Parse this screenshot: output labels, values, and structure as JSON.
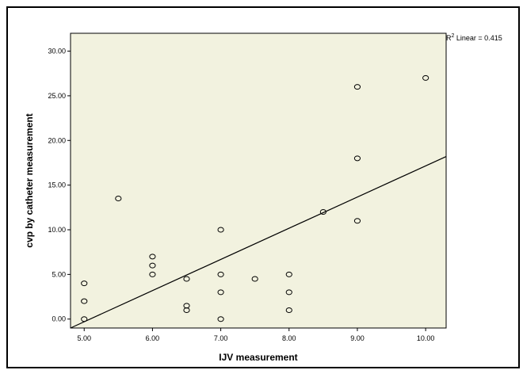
{
  "chart_data": {
    "type": "scatter",
    "title": "",
    "xlabel": "IJV measurement",
    "ylabel": "cvp by catheter measurement",
    "xlim": [
      4.8,
      10.3
    ],
    "ylim": [
      -1.0,
      32.0
    ],
    "xticks": [
      "5.00",
      "6.00",
      "7.00",
      "8.00",
      "9.00",
      "10.00"
    ],
    "yticks": [
      "0.00",
      "5.00",
      "10.00",
      "15.00",
      "20.00",
      "25.00",
      "30.00"
    ],
    "grid": false,
    "points": [
      {
        "x": 5.0,
        "y": 0.0
      },
      {
        "x": 5.0,
        "y": 2.0
      },
      {
        "x": 5.0,
        "y": 4.0
      },
      {
        "x": 5.5,
        "y": 13.5
      },
      {
        "x": 6.0,
        "y": 5.0
      },
      {
        "x": 6.0,
        "y": 6.0
      },
      {
        "x": 6.0,
        "y": 7.0
      },
      {
        "x": 6.5,
        "y": 1.0
      },
      {
        "x": 6.5,
        "y": 1.5
      },
      {
        "x": 6.5,
        "y": 4.5
      },
      {
        "x": 7.0,
        "y": 0.0
      },
      {
        "x": 7.0,
        "y": 3.0
      },
      {
        "x": 7.0,
        "y": 5.0
      },
      {
        "x": 7.0,
        "y": 10.0
      },
      {
        "x": 7.5,
        "y": 4.5
      },
      {
        "x": 8.0,
        "y": 1.0
      },
      {
        "x": 8.0,
        "y": 3.0
      },
      {
        "x": 8.0,
        "y": 5.0
      },
      {
        "x": 8.5,
        "y": 12.0
      },
      {
        "x": 9.0,
        "y": 11.0
      },
      {
        "x": 9.0,
        "y": 18.0
      },
      {
        "x": 9.0,
        "y": 26.0
      },
      {
        "x": 10.0,
        "y": 27.0
      }
    ],
    "fit_line": {
      "type": "linear",
      "from": {
        "x": 4.8,
        "y": -1.0
      },
      "to": {
        "x": 10.3,
        "y": 18.2
      }
    },
    "annotation": {
      "prefix": "R",
      "superscript": "2",
      "text": " Linear = 0.415"
    },
    "colors": {
      "plot_background": "#f2f2df",
      "marker_stroke": "#000000",
      "fit_line": "#000000"
    }
  }
}
